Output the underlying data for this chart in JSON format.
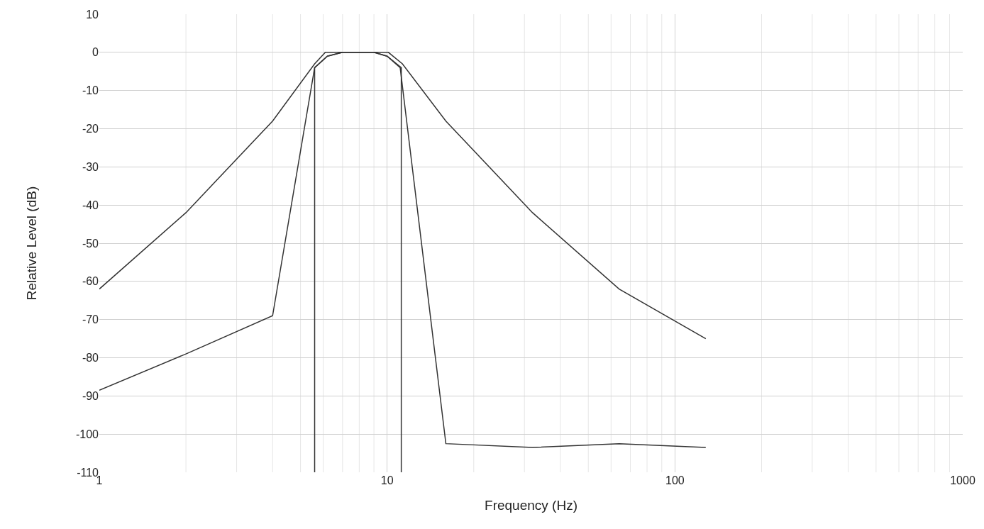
{
  "chart_data": {
    "type": "line",
    "xlabel": "Frequency (Hz)",
    "ylabel": "Relative Level (dB)",
    "log": "x",
    "grid": true,
    "legend": false,
    "marker": "none",
    "line_style": "solid",
    "xlim": [
      1,
      1000
    ],
    "xticks": [
      1,
      10,
      100,
      1000
    ],
    "ylim": [
      -110,
      10
    ],
    "yticks": [
      10,
      0,
      -10,
      -20,
      -30,
      -40,
      -50,
      -60,
      -70,
      -80,
      -90,
      -100,
      -110
    ],
    "series": [
      {
        "color": "#333333",
        "x": [
          1,
          2,
          4,
          5.6,
          6.1,
          10.1,
          11.3,
          16,
          32,
          64,
          128
        ],
        "values": [
          -62,
          -42,
          -18,
          -3,
          0,
          0,
          -3,
          -18,
          -42,
          -62,
          -75
        ]
      },
      {
        "color": "#333333",
        "x": [
          1,
          2,
          4,
          5.6,
          6.2,
          7,
          9,
          10,
          11.1,
          16,
          32,
          64,
          128
        ],
        "values": [
          -88.5,
          -79,
          -69,
          -4,
          -1,
          0,
          0,
          -1,
          -4,
          -102.5,
          -103.5,
          -102.5,
          -103.5
        ]
      },
      {
        "color": "#333333",
        "x": [
          5.6,
          5.6,
          6.2,
          7,
          9,
          10,
          11.2,
          11.2
        ],
        "values": [
          -110,
          -4,
          -1,
          0,
          0,
          -1,
          -4,
          -110
        ]
      }
    ]
  }
}
